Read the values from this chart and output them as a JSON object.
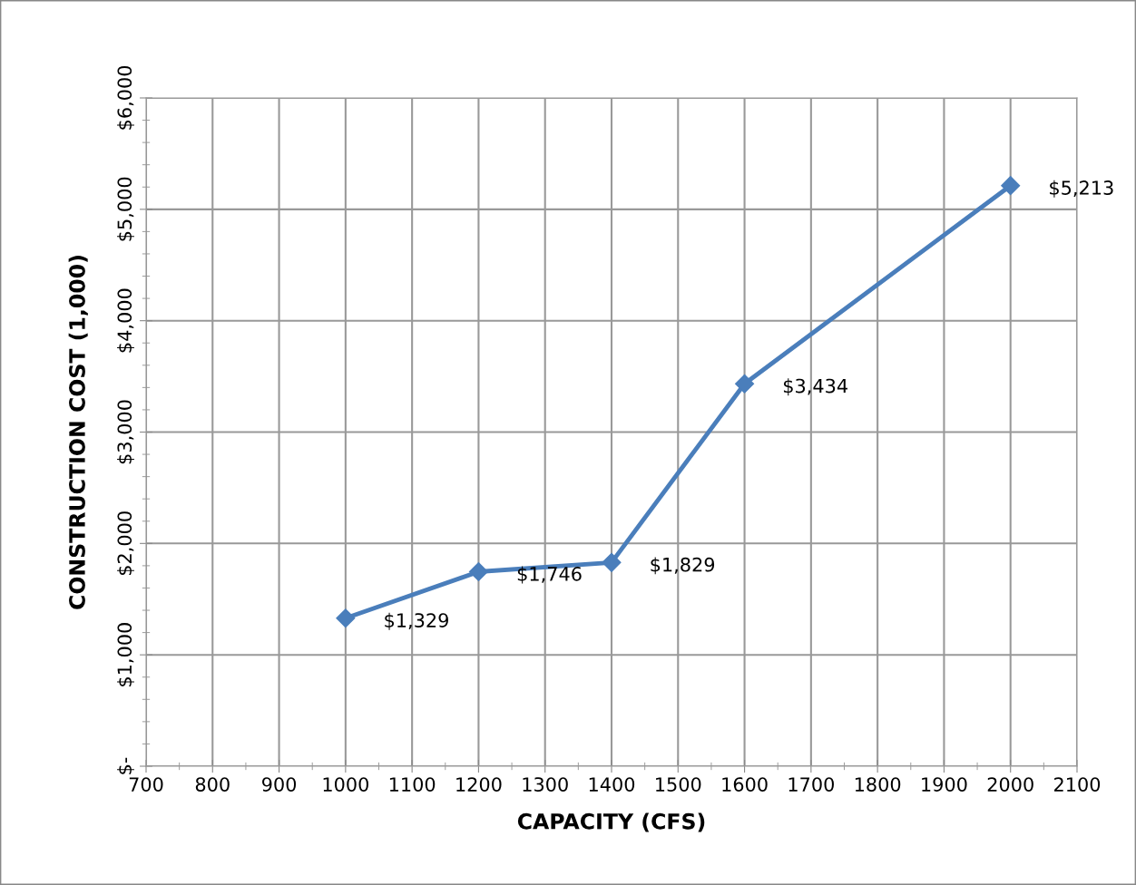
{
  "chart_data": {
    "type": "line",
    "xlabel": "CAPACITY (CFS)",
    "ylabel": "CONSTRUCTION COST (1,000)",
    "x": [
      1000,
      1200,
      1400,
      1600,
      2000
    ],
    "series": [
      {
        "color": "#4a7ebb",
        "values": [
          1329,
          1746,
          1829,
          3434,
          5213
        ],
        "value_labels": [
          "$1,329",
          "$1,746",
          "$1,829",
          "$3,434",
          "$5,213"
        ]
      }
    ],
    "xlim": [
      700,
      2100
    ],
    "xticks": [
      700,
      800,
      900,
      1000,
      1100,
      1200,
      1300,
      1400,
      1500,
      1600,
      1700,
      1800,
      1900,
      2000,
      2100
    ],
    "ylim": [
      0,
      6000
    ],
    "yticks": [
      {
        "value": 0,
        "label": "$-"
      },
      {
        "value": 1000,
        "label": "$1,000"
      },
      {
        "value": 2000,
        "label": "$2,000"
      },
      {
        "value": 3000,
        "label": "$3,000"
      },
      {
        "value": 4000,
        "label": "$4,000"
      },
      {
        "value": 5000,
        "label": "$5,000"
      },
      {
        "value": 6000,
        "label": "$6,000"
      }
    ],
    "grid": true,
    "marker": "diamond",
    "line_style": "solid",
    "legend": false
  }
}
